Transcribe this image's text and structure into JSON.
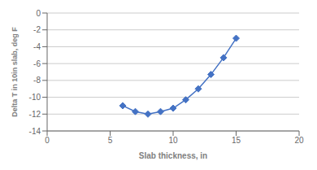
{
  "chart_data": {
    "type": "line",
    "x": [
      6,
      7,
      8,
      9,
      10,
      11,
      12,
      13,
      14,
      15
    ],
    "values": [
      -11.0,
      -11.7,
      -12.0,
      -11.7,
      -11.3,
      -10.3,
      -9.0,
      -7.3,
      -5.3,
      -3.0
    ],
    "xlabel": "Slab thickness, in",
    "ylabel": "Delta T in 10in slab, deg F",
    "xlim": [
      0,
      20
    ],
    "ylim": [
      -14,
      0
    ],
    "xticks": [
      0,
      5,
      10,
      15,
      20
    ],
    "yticks": [
      0,
      -2,
      -4,
      -6,
      -8,
      -10,
      -12,
      -14
    ],
    "color": "#4472C4",
    "marker": "diamond",
    "grid": true
  }
}
